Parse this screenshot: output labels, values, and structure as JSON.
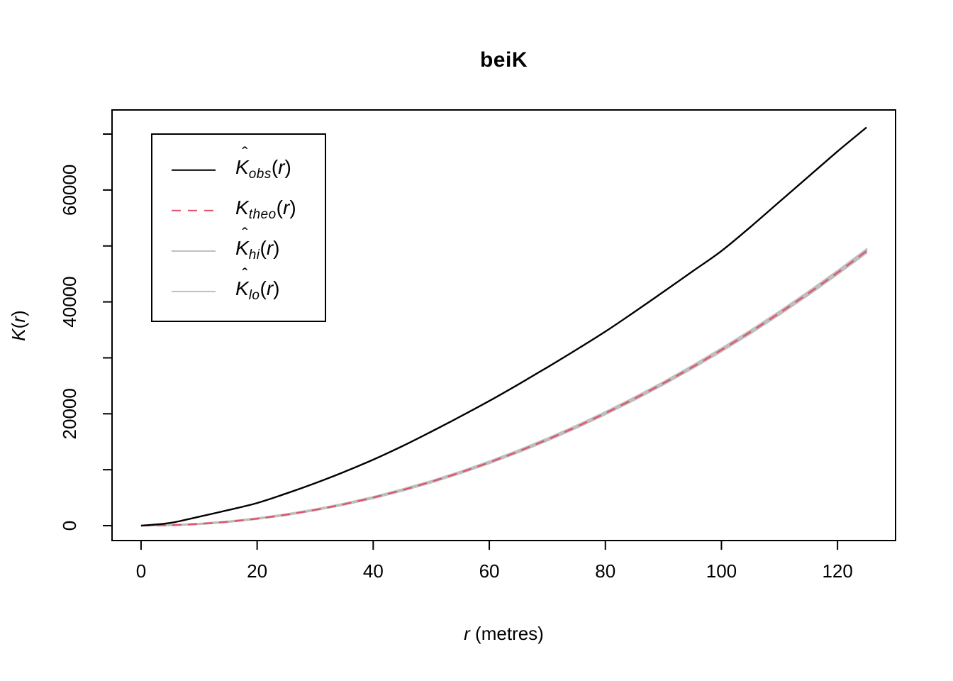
{
  "title": "beiK",
  "axes": {
    "xlabel": {
      "var": "r",
      "rest": " (metres)"
    },
    "ylabel": {
      "var": "K",
      "open": "(",
      "arg": "r",
      "close": ")"
    }
  },
  "legend": {
    "hat_char": "ˆ",
    "paren_open": "(",
    "arg": "r",
    "paren_close": ")",
    "items": [
      {
        "id": "obs",
        "main": "K",
        "hat": true,
        "sub": "obs",
        "line_color": "#000000",
        "line_style": "solid",
        "line_width": 2.4
      },
      {
        "id": "theo",
        "main": "K",
        "hat": false,
        "sub": "theo",
        "line_color": "#DF536B",
        "line_style": "dashed",
        "line_width": 2.4
      },
      {
        "id": "hi",
        "main": "K",
        "hat": true,
        "sub": "hi",
        "line_color": "#BEBEBE",
        "line_style": "solid",
        "line_width": 2.2
      },
      {
        "id": "lo",
        "main": "K",
        "hat": true,
        "sub": "lo",
        "line_color": "#BEBEBE",
        "line_style": "solid",
        "line_width": 2.2
      }
    ]
  },
  "colors": {
    "observed": "#000000",
    "theoretical": "#DF536B",
    "envelope": "#BEBEBE",
    "frame": "#000000",
    "background": "#FFFFFF"
  },
  "chart_data": {
    "type": "line",
    "title": "beiK",
    "xlabel": "r (metres)",
    "ylabel": "K(r)",
    "grid": false,
    "legend_position": "top-left",
    "xlim": [
      -5,
      130
    ],
    "ylim": [
      -2660,
      74310
    ],
    "x_data_range": [
      0,
      125
    ],
    "y_data_range": [
      0,
      71200
    ],
    "xticks": {
      "values": [
        0,
        20,
        40,
        60,
        80,
        100,
        120
      ],
      "labels": [
        "0",
        "20",
        "40",
        "60",
        "80",
        "100",
        "120"
      ]
    },
    "yticks": {
      "values": [
        0,
        10000,
        20000,
        30000,
        40000,
        50000,
        60000,
        70000
      ],
      "labels": [
        "0",
        "",
        "20000",
        "",
        "40000",
        "",
        "60000",
        ""
      ]
    },
    "x": [
      0,
      5,
      10,
      15,
      20,
      25,
      30,
      35,
      40,
      45,
      50,
      55,
      60,
      65,
      70,
      75,
      80,
      85,
      90,
      95,
      100,
      105,
      110,
      115,
      120,
      125
    ],
    "series": [
      {
        "name": "K_obs",
        "label": "K-hat obs(r)",
        "color": "#000000",
        "style": "solid",
        "values": [
          0,
          480,
          1600,
          2780,
          4050,
          5750,
          7600,
          9620,
          11800,
          14200,
          16800,
          19500,
          22300,
          25250,
          28300,
          31450,
          34700,
          38200,
          41800,
          45450,
          49100,
          53400,
          57900,
          62400,
          66900,
          71200
        ]
      },
      {
        "name": "K_theo",
        "label": "K theo(r)",
        "color": "#DF536B",
        "style": "dashed",
        "values": [
          0,
          79,
          314,
          707,
          1257,
          1963,
          2827,
          3848,
          5027,
          6362,
          7854,
          9503,
          11310,
          13273,
          15394,
          17671,
          20106,
          22698,
          25447,
          28353,
          31416,
          34636,
          38013,
          41548,
          45239,
          49087
        ]
      },
      {
        "name": "K_hi",
        "label": "K-hat hi(r)",
        "color": "#BEBEBE",
        "style": "solid",
        "values": [
          0,
          131,
          379,
          785,
          1347,
          2066,
          2942,
          3976,
          5167,
          6515,
          8019,
          9681,
          11500,
          13476,
          15609,
          17899,
          20346,
          22951,
          25712,
          28631,
          31706,
          34939,
          38328,
          41876,
          45579,
          49440
        ]
      },
      {
        "name": "K_lo",
        "label": "K-hat lo(r)",
        "color": "#BEBEBE",
        "style": "solid",
        "values": [
          0,
          27,
          249,
          629,
          1167,
          1860,
          2712,
          3720,
          4887,
          6209,
          7689,
          9325,
          11120,
          13070,
          15179,
          17443,
          19866,
          22445,
          25182,
          28075,
          31126,
          34333,
          37698,
          41220,
          44899,
          48734
        ]
      }
    ]
  }
}
